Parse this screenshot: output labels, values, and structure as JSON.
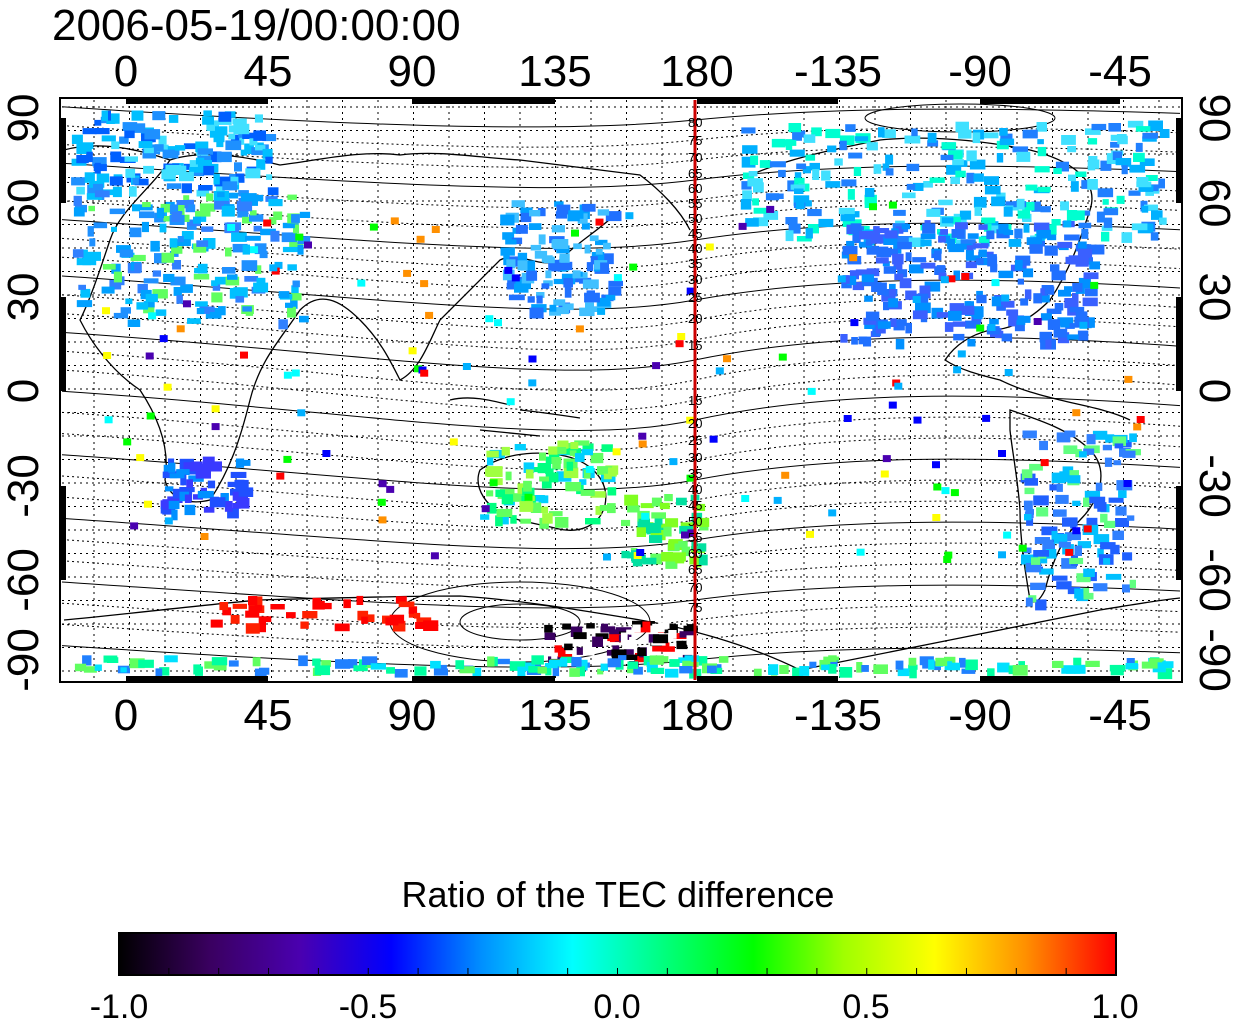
{
  "title": "2006-05-19/00:00:00",
  "map": {
    "x_ticks": [
      "0",
      "45",
      "90",
      "135",
      "180",
      "-135",
      "-90",
      "-45"
    ],
    "y_ticks": [
      "90",
      "60",
      "30",
      "0",
      "-30",
      "-60",
      "-90"
    ],
    "meridian_line_color": "#cc0000",
    "meridian_longitude": "180",
    "contour_labels_north": [
      "80",
      "75",
      "70",
      "65",
      "60",
      "55",
      "50",
      "45",
      "40",
      "35",
      "30",
      "25",
      "20",
      "15"
    ],
    "contour_labels_south": [
      "15",
      "20",
      "25",
      "30",
      "35",
      "40",
      "45",
      "50",
      "55",
      "60",
      "65",
      "70",
      "75"
    ]
  },
  "colorbar": {
    "title": "Ratio of the TEC difference",
    "labels": [
      "-1.0",
      "-0.5",
      "0.0",
      "0.5",
      "1.0"
    ],
    "colors": [
      "#000000",
      "#3a0060",
      "#4a00b0",
      "#0000ff",
      "#0090ff",
      "#00ffff",
      "#00ff80",
      "#00ff00",
      "#a0ff00",
      "#ffff00",
      "#ff9000",
      "#ff0000"
    ]
  }
}
